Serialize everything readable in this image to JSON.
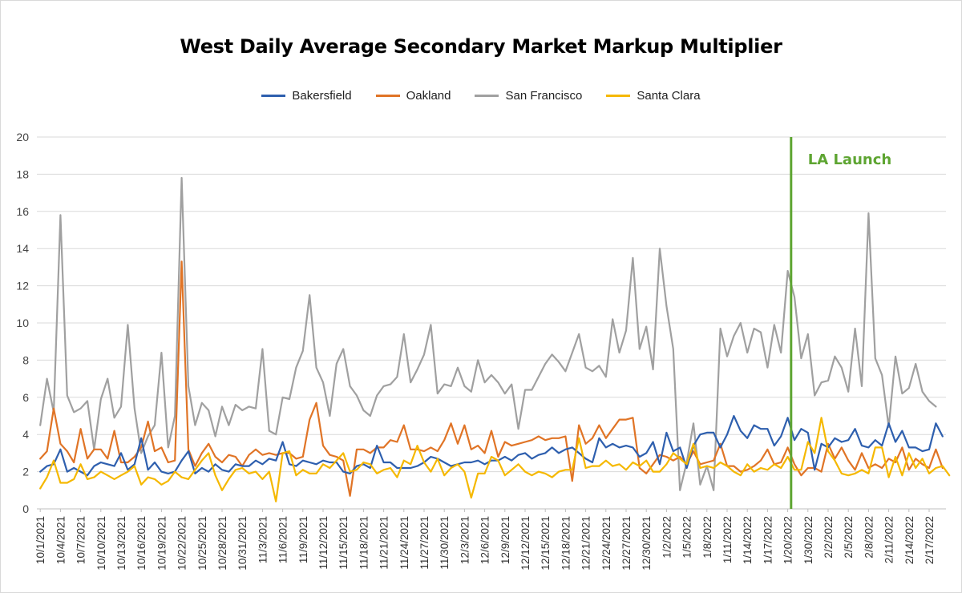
{
  "chart_data": {
    "type": "line",
    "title": "West Daily Average Secondary Market Markup Multiplier",
    "ylim": [
      0,
      20
    ],
    "yticks": [
      "0",
      "2",
      "4",
      "6",
      "8",
      "10",
      "12",
      "14",
      "16",
      "18",
      "20"
    ],
    "grid": true,
    "legend_position": "top",
    "x_labels": [
      "10/1/2021",
      "10/4/2021",
      "10/7/2021",
      "10/10/2021",
      "10/13/2021",
      "10/16/2021",
      "10/19/2021",
      "10/22/2021",
      "10/25/2021",
      "10/28/2021",
      "10/31/2021",
      "11/3/2021",
      "11/6/2021",
      "11/9/2021",
      "11/12/2021",
      "11/15/2021",
      "11/18/2021",
      "11/21/2021",
      "11/24/2021",
      "11/27/2021",
      "11/30/2021",
      "12/3/2021",
      "12/6/2021",
      "12/9/2021",
      "12/12/2021",
      "12/15/2021",
      "12/18/2021",
      "12/21/2021",
      "12/24/2021",
      "12/27/2021",
      "12/30/2021",
      "1/2/2022",
      "1/5/2022",
      "1/8/2022",
      "1/11/2022",
      "1/14/2022",
      "1/17/2022",
      "1/20/2022",
      "1/30/2022",
      "2/2/2022",
      "2/5/2022",
      "2/8/2022",
      "2/11/2022",
      "2/14/2022",
      "2/17/2022"
    ],
    "annotation": {
      "label": "LA Launch",
      "after_index": 111,
      "color": "#5ea532"
    },
    "series": [
      {
        "name": "Bakersfield",
        "color": "#2e5fae",
        "values": [
          2.0,
          2.3,
          2.4,
          3.2,
          2.0,
          2.2,
          2.0,
          1.8,
          2.3,
          2.5,
          2.4,
          2.3,
          3.0,
          2.1,
          2.4,
          3.8,
          2.1,
          2.5,
          2.0,
          1.9,
          2.0,
          2.6,
          3.1,
          1.9,
          2.2,
          2.0,
          2.4,
          2.1,
          2.0,
          2.4,
          2.3,
          2.3,
          2.6,
          2.4,
          2.7,
          2.6,
          3.6,
          2.4,
          2.3,
          2.6,
          2.5,
          2.4,
          2.6,
          2.5,
          2.5,
          2.0,
          1.9,
          2.3,
          2.4,
          2.2,
          3.4,
          2.5,
          2.5,
          2.2,
          2.2,
          2.2,
          2.3,
          2.5,
          2.8,
          2.7,
          2.5,
          2.3,
          2.4,
          2.5,
          2.5,
          2.6,
          2.4,
          2.6,
          2.6,
          2.8,
          2.6,
          2.9,
          3.0,
          2.7,
          2.9,
          3.0,
          3.3,
          3.0,
          3.2,
          3.3,
          3.0,
          2.7,
          2.5,
          3.8,
          3.3,
          3.5,
          3.3,
          3.4,
          3.3,
          2.8,
          3.0,
          3.6,
          2.4,
          4.1,
          3.1,
          3.3,
          2.2,
          3.4,
          4.0,
          4.1,
          4.1,
          3.3,
          4.0,
          5.0,
          4.2,
          3.8,
          4.5,
          4.3,
          4.3,
          3.4,
          3.9,
          4.9,
          3.7,
          4.3,
          4.1,
          2.1,
          3.5,
          3.3,
          3.8,
          3.6,
          3.7,
          4.3,
          3.4,
          3.3,
          3.7,
          3.4,
          4.6,
          3.6,
          4.2,
          3.3,
          3.3,
          3.1,
          3.2,
          4.6,
          3.9
        ]
      },
      {
        "name": "Oakland",
        "color": "#e07426",
        "values": [
          2.7,
          3.1,
          5.4,
          3.5,
          3.1,
          2.5,
          4.3,
          2.7,
          3.2,
          3.2,
          2.7,
          4.2,
          2.5,
          2.5,
          2.8,
          3.3,
          4.7,
          3.1,
          3.3,
          2.5,
          2.6,
          13.3,
          3.2,
          2.3,
          3.0,
          3.5,
          2.8,
          2.5,
          2.9,
          2.8,
          2.3,
          2.9,
          3.2,
          2.9,
          3.0,
          2.9,
          3.0,
          3.0,
          2.7,
          2.8,
          4.8,
          5.7,
          3.4,
          2.9,
          2.8,
          2.6,
          0.7,
          3.2,
          3.2,
          3.0,
          3.3,
          3.3,
          3.7,
          3.6,
          4.5,
          3.2,
          3.2,
          3.1,
          3.3,
          3.1,
          3.7,
          4.6,
          3.5,
          4.5,
          3.2,
          3.4,
          3.0,
          4.2,
          2.8,
          3.6,
          3.4,
          3.5,
          3.6,
          3.7,
          3.9,
          3.7,
          3.8,
          3.8,
          3.9,
          1.5,
          4.5,
          3.5,
          3.8,
          4.5,
          3.8,
          4.3,
          4.8,
          4.8,
          4.9,
          2.2,
          1.9,
          2.4,
          2.9,
          2.8,
          2.6,
          2.8,
          2.4,
          3.1,
          2.4,
          2.5,
          2.6,
          3.5,
          2.3,
          2.3,
          2.0,
          2.1,
          2.3,
          2.6,
          3.2,
          2.4,
          2.5,
          3.3,
          2.4,
          1.8,
          2.2,
          2.2,
          2.0,
          3.5,
          2.7,
          3.3,
          2.6,
          2.1,
          3.0,
          2.2,
          2.4,
          2.2,
          2.7,
          2.5,
          3.3,
          2.1,
          2.7,
          2.4,
          2.2,
          3.2,
          2.2
        ]
      },
      {
        "name": "San Francisco",
        "color": "#a0a0a0",
        "values": [
          4.5,
          7.0,
          5.2,
          15.8,
          6.1,
          5.2,
          5.4,
          5.8,
          3.2,
          5.9,
          7.0,
          4.9,
          5.5,
          9.9,
          5.4,
          3.0,
          3.9,
          4.5,
          8.4,
          3.3,
          5.0,
          17.8,
          6.6,
          4.5,
          5.7,
          5.3,
          3.9,
          5.5,
          4.5,
          5.6,
          5.3,
          5.5,
          5.4,
          8.6,
          4.2,
          4.0,
          6.0,
          5.9,
          7.6,
          8.5,
          11.5,
          7.6,
          6.8,
          5.0,
          7.8,
          8.6,
          6.6,
          6.1,
          5.3,
          5.0,
          6.1,
          6.6,
          6.7,
          7.1,
          9.4,
          6.8,
          7.5,
          8.3,
          9.9,
          6.2,
          6.7,
          6.6,
          7.6,
          6.6,
          6.3,
          8.0,
          6.8,
          7.2,
          6.8,
          6.2,
          6.7,
          4.3,
          6.4,
          6.4,
          7.1,
          7.8,
          8.3,
          7.9,
          7.4,
          8.4,
          9.4,
          7.6,
          7.4,
          7.7,
          7.1,
          10.2,
          8.4,
          9.6,
          13.5,
          8.6,
          9.8,
          7.5,
          14.0,
          10.9,
          8.6,
          1.0,
          2.5,
          4.6,
          1.3,
          2.3,
          1.0,
          9.7,
          8.2,
          9.3,
          10.0,
          8.4,
          9.7,
          9.5,
          7.6,
          9.9,
          8.4,
          12.8,
          11.4,
          8.1,
          9.4,
          6.1,
          6.8,
          6.9,
          8.2,
          7.6,
          6.3,
          9.7,
          6.6,
          15.9,
          8.1,
          7.2,
          4.4,
          8.2,
          6.2,
          6.5,
          7.8,
          6.3,
          5.8,
          5.5
        ]
      },
      {
        "name": "Santa Clara",
        "color": "#f5b800",
        "values": [
          1.1,
          1.7,
          2.6,
          1.4,
          1.4,
          1.6,
          2.4,
          1.6,
          1.7,
          2.0,
          1.8,
          1.6,
          1.8,
          2.0,
          2.3,
          1.3,
          1.7,
          1.6,
          1.3,
          1.5,
          2.0,
          1.7,
          1.6,
          2.1,
          2.6,
          3.0,
          1.8,
          1.0,
          1.6,
          2.1,
          2.2,
          1.9,
          2.0,
          1.6,
          2.0,
          0.4,
          3.0,
          3.1,
          1.8,
          2.1,
          1.9,
          1.9,
          2.4,
          2.2,
          2.6,
          3.0,
          2.0,
          2.1,
          2.5,
          2.4,
          1.9,
          2.1,
          2.2,
          1.7,
          2.6,
          2.4,
          3.4,
          2.5,
          2.0,
          2.7,
          1.8,
          2.2,
          2.4,
          2.0,
          0.6,
          1.9,
          1.9,
          2.8,
          2.6,
          1.8,
          2.1,
          2.4,
          2.0,
          1.8,
          2.0,
          1.9,
          1.7,
          2.0,
          2.1,
          2.1,
          3.8,
          2.2,
          2.3,
          2.3,
          2.6,
          2.3,
          2.4,
          2.1,
          2.5,
          2.3,
          2.6,
          2.0,
          2.0,
          2.4,
          3.0,
          2.7,
          2.4,
          3.5,
          2.2,
          2.3,
          2.2,
          2.5,
          2.3,
          2.0,
          1.8,
          2.4,
          2.0,
          2.2,
          2.1,
          2.4,
          2.2,
          2.8,
          2.1,
          2.1,
          3.6,
          3.0,
          4.9,
          3.1,
          2.6,
          1.9,
          1.8,
          1.9,
          2.1,
          1.9,
          3.3,
          3.3,
          1.7,
          2.8,
          1.8,
          3.0,
          2.2,
          2.7,
          1.9,
          2.2,
          2.3,
          1.8
        ]
      }
    ]
  }
}
